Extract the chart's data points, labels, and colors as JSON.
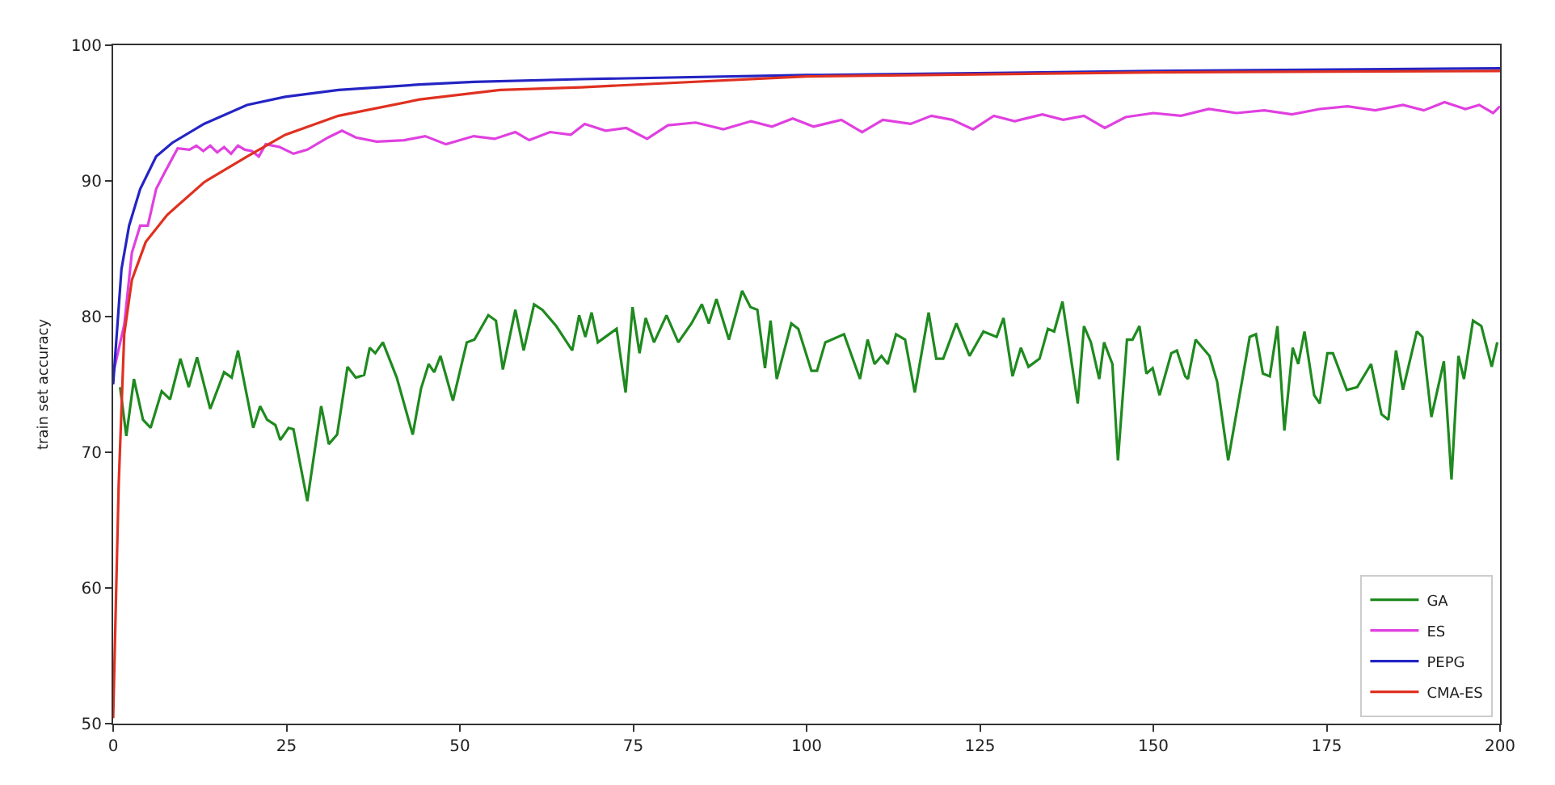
{
  "chart_data": {
    "type": "line",
    "ylabel": "train set accuracy",
    "xlim": [
      0,
      200
    ],
    "ylim": [
      50,
      100
    ],
    "xticks": [
      0,
      25,
      50,
      75,
      100,
      125,
      150,
      175,
      200
    ],
    "yticks": [
      50,
      60,
      70,
      80,
      90,
      100
    ],
    "grid": false,
    "legend": "bottom right",
    "marker": "none",
    "line_style": "solid",
    "series": [
      {
        "name": "GA",
        "color": "#1f8a1f",
        "x": [
          1,
          1.9,
          3,
          4.3,
          5.4,
          7,
          8.2,
          9.7,
          10.9,
          12.1,
          14,
          16,
          17.1,
          18,
          20.2,
          21.2,
          22.2,
          23.4,
          24.1,
          25.3,
          26,
          28,
          30,
          31.1,
          32.3,
          33.8,
          35,
          36.2,
          37,
          37.8,
          38.9,
          40.9,
          43.2,
          44.4,
          45.5,
          46.3,
          47.2,
          49,
          51,
          52.1,
          54.1,
          55.2,
          56.2,
          58,
          59.2,
          60.7,
          61.9,
          63.9,
          66.2,
          67.2,
          68.1,
          69,
          69.9,
          72.6,
          73.9,
          74.9,
          75.9,
          76.8,
          78,
          79.8,
          81.5,
          83.4,
          84.9,
          85.9,
          87,
          88.8,
          90.7,
          91.9,
          92.9,
          94,
          94.8,
          95.7,
          97.8,
          98.8,
          100.7,
          101.5,
          102.7,
          105.4,
          107.7,
          108.8,
          109.8,
          110.8,
          111.7,
          112.9,
          114.2,
          115.6,
          117.6,
          118.7,
          119.7,
          121.6,
          123.5,
          125.5,
          127.4,
          128.4,
          129.7,
          130.9,
          132,
          133.6,
          134.8,
          135.7,
          136.9,
          139.1,
          140,
          141,
          142.2,
          142.9,
          144.1,
          144.9,
          146.2,
          147,
          148,
          149,
          149.9,
          150.9,
          152.6,
          153.4,
          154.6,
          155,
          156.1,
          158.1,
          159.2,
          160.8,
          163.9,
          164.8,
          165.8,
          166.8,
          167.9,
          168.9,
          170.1,
          170.9,
          171.8,
          173.2,
          174,
          175.1,
          175.9,
          177.9,
          179.4,
          181.4,
          182.9,
          183.9,
          185,
          186,
          188,
          188.8,
          190.1,
          191.9,
          193,
          194,
          194.8,
          196.1,
          197.3,
          198.8,
          199.6
        ],
        "values": [
          74.8,
          71.2,
          75.4,
          72.4,
          71.8,
          74.5,
          73.9,
          76.9,
          74.8,
          77,
          73.2,
          75.9,
          75.5,
          77.5,
          71.8,
          73.4,
          72.4,
          72,
          70.9,
          71.8,
          71.7,
          66.4,
          73.4,
          70.6,
          71.3,
          76.3,
          75.5,
          75.7,
          77.7,
          77.3,
          78.1,
          75.5,
          71.3,
          74.7,
          76.5,
          75.9,
          77.1,
          73.8,
          78.1,
          78.3,
          80.1,
          79.7,
          76.1,
          80.5,
          77.5,
          80.9,
          80.5,
          79.3,
          77.5,
          80.1,
          78.5,
          80.3,
          78.1,
          79.1,
          74.4,
          80.7,
          77.3,
          79.9,
          78.1,
          80.1,
          78.1,
          79.5,
          80.9,
          79.5,
          81.3,
          78.3,
          81.9,
          80.7,
          80.5,
          76.2,
          79.7,
          75.4,
          79.5,
          79.1,
          76,
          76,
          78.1,
          78.7,
          75.4,
          78.3,
          76.5,
          77.1,
          76.5,
          78.7,
          78.3,
          74.4,
          80.3,
          76.9,
          76.9,
          79.5,
          77.1,
          78.9,
          78.5,
          79.9,
          75.6,
          77.7,
          76.3,
          76.9,
          79.1,
          78.9,
          81.1,
          73.6,
          79.3,
          78.1,
          75.4,
          78.1,
          76.5,
          69.4,
          78.3,
          78.3,
          79.3,
          75.8,
          76.2,
          74.2,
          77.3,
          77.5,
          75.6,
          75.4,
          78.3,
          77.1,
          75.2,
          69.4,
          78.5,
          78.7,
          75.8,
          75.6,
          79.3,
          71.6,
          77.7,
          76.5,
          78.9,
          74.2,
          73.6,
          77.3,
          77.3,
          74.6,
          74.8,
          76.5,
          72.8,
          72.4,
          77.5,
          74.6,
          78.9,
          78.5,
          72.6,
          76.7,
          68,
          77.1,
          75.4,
          79.7,
          79.3,
          76.3,
          78.1
        ]
      },
      {
        "name": "ES",
        "color": "#e040e0",
        "x": [
          0,
          1.6,
          2.7,
          3.9,
          5,
          6.2,
          7.4,
          9.3,
          11,
          12,
          13,
          14,
          15,
          16,
          17,
          18,
          19,
          20,
          21,
          22,
          24,
          26,
          28,
          31,
          33,
          35,
          38,
          42,
          45,
          48,
          52,
          55,
          58,
          60,
          63,
          66,
          68,
          71,
          74,
          77,
          80,
          84,
          88,
          92,
          95,
          98,
          101,
          105,
          108,
          111,
          115,
          118,
          121,
          124,
          127,
          130,
          134,
          137,
          140,
          143,
          146,
          150,
          154,
          158,
          162,
          166,
          170,
          174,
          178,
          182,
          186,
          189,
          192,
          195,
          197,
          199,
          200
        ],
        "values": [
          75.8,
          79.4,
          84.7,
          86.7,
          86.7,
          89.4,
          90.6,
          92.4,
          92.3,
          92.6,
          92.2,
          92.6,
          92.1,
          92.5,
          92,
          92.6,
          92.3,
          92.2,
          91.8,
          92.7,
          92.5,
          92,
          92.3,
          93.2,
          93.7,
          93.2,
          92.9,
          93,
          93.3,
          92.7,
          93.3,
          93.1,
          93.6,
          93,
          93.6,
          93.4,
          94.2,
          93.7,
          93.9,
          93.1,
          94.1,
          94.3,
          93.8,
          94.4,
          94,
          94.6,
          94,
          94.5,
          93.6,
          94.5,
          94.2,
          94.8,
          94.5,
          93.8,
          94.8,
          94.4,
          94.9,
          94.5,
          94.8,
          93.9,
          94.7,
          95,
          94.8,
          95.3,
          95,
          95.2,
          94.9,
          95.3,
          95.5,
          95.2,
          95.6,
          95.2,
          95.8,
          95.3,
          95.6,
          95,
          95.5
        ]
      },
      {
        "name": "PEPG",
        "color": "#2424c4",
        "x": [
          0,
          1.2,
          2.3,
          3.9,
          6.2,
          8.5,
          13.1,
          19.3,
          24.8,
          32.5,
          44.2,
          52,
          67.5,
          100,
          150,
          200
        ],
        "values": [
          75,
          83.5,
          86.7,
          89.4,
          91.8,
          92.8,
          94.2,
          95.6,
          96.2,
          96.7,
          97.1,
          97.3,
          97.5,
          97.8,
          98.1,
          98.3
        ]
      },
      {
        "name": "CMA-ES",
        "color": "#e03020",
        "x": [
          0,
          0.8,
          1.6,
          2.7,
          4.7,
          7.8,
          13.1,
          19.3,
          24.8,
          32.5,
          44.2,
          55.8,
          67.5,
          100,
          150,
          200
        ],
        "values": [
          50.4,
          67.6,
          78.7,
          82.7,
          85.5,
          87.5,
          89.9,
          91.8,
          93.4,
          94.8,
          96,
          96.7,
          96.9,
          97.7,
          98,
          98.1
        ]
      }
    ]
  }
}
